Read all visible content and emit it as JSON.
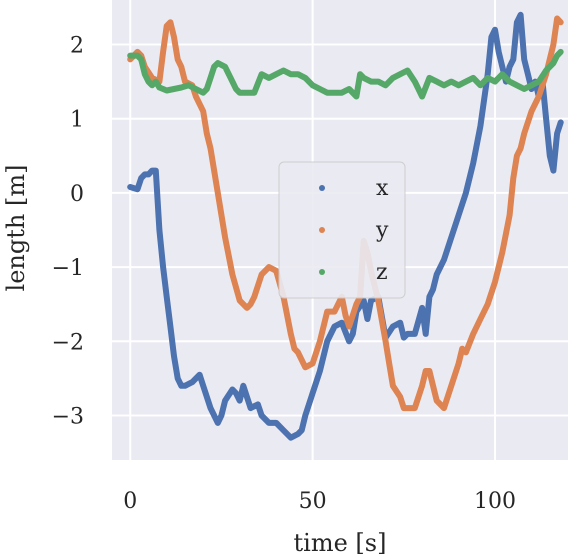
{
  "chart_data": {
    "type": "line",
    "xlabel": "time [s]",
    "ylabel": "length [m]",
    "xlim": [
      -5,
      120
    ],
    "ylim": [
      -3.6,
      2.6
    ],
    "x_ticks": [
      0,
      50,
      100
    ],
    "x_tick_labels": [
      "0",
      "50",
      "100"
    ],
    "y_ticks": [
      2,
      1,
      0,
      -1,
      -2,
      -3
    ],
    "y_tick_labels": [
      "2",
      "1",
      "0",
      "−1",
      "−2",
      "−3"
    ],
    "grid": true,
    "legend_position": "center",
    "series": [
      {
        "name": "x",
        "color": "#4c72b0",
        "x": [
          0,
          2,
          3,
          4,
          5,
          6,
          7,
          8,
          9,
          10,
          11,
          12,
          13,
          14,
          15,
          17,
          19,
          20,
          22,
          24,
          25,
          26,
          28,
          29,
          30,
          31,
          33,
          35,
          36,
          38,
          40,
          42,
          44,
          46,
          47,
          48,
          50,
          52,
          54,
          56,
          58,
          60,
          61,
          62,
          64,
          65,
          66,
          68,
          70,
          72,
          74,
          75,
          76,
          78,
          80,
          81,
          82,
          83,
          84,
          86,
          88,
          90,
          92,
          94,
          96,
          98,
          99,
          100,
          101,
          102,
          103,
          104,
          105,
          106,
          107,
          108,
          109,
          110,
          111,
          112,
          113,
          114,
          115,
          116,
          117,
          118
        ],
        "y": [
          0.08,
          0.05,
          0.2,
          0.25,
          0.25,
          0.3,
          0.3,
          -0.5,
          -1.0,
          -1.4,
          -1.8,
          -2.2,
          -2.5,
          -2.6,
          -2.6,
          -2.55,
          -2.45,
          -2.6,
          -2.9,
          -3.1,
          -3.0,
          -2.8,
          -2.65,
          -2.7,
          -2.8,
          -2.6,
          -2.9,
          -2.85,
          -3.0,
          -3.1,
          -3.1,
          -3.2,
          -3.3,
          -3.25,
          -3.2,
          -3.0,
          -2.7,
          -2.4,
          -2.0,
          -1.8,
          -1.75,
          -2.0,
          -1.9,
          -1.6,
          -1.45,
          -1.7,
          -1.45,
          -1.4,
          -1.95,
          -1.8,
          -1.75,
          -1.95,
          -1.9,
          -1.9,
          -1.55,
          -1.9,
          -1.4,
          -1.3,
          -1.1,
          -0.9,
          -0.6,
          -0.3,
          0.0,
          0.4,
          0.9,
          1.6,
          2.1,
          2.2,
          1.9,
          1.7,
          1.5,
          1.7,
          1.8,
          2.3,
          2.4,
          1.8,
          1.6,
          1.4,
          1.5,
          1.3,
          1.5,
          1.0,
          0.5,
          0.3,
          0.8,
          0.95
        ]
      },
      {
        "name": "y",
        "color": "#dd8452",
        "x": [
          0,
          2,
          3,
          4,
          6,
          8,
          9,
          10,
          11,
          12,
          13,
          14,
          15,
          17,
          18,
          20,
          21,
          22,
          24,
          26,
          28,
          30,
          31,
          32,
          33,
          34,
          36,
          38,
          40,
          42,
          44,
          45,
          46,
          48,
          50,
          52,
          54,
          56,
          58,
          59,
          60,
          62,
          63,
          64,
          65,
          66,
          68,
          70,
          71,
          72,
          74,
          75,
          76,
          78,
          80,
          81,
          82,
          84,
          86,
          88,
          90,
          91,
          92,
          94,
          96,
          98,
          100,
          102,
          104,
          105,
          106,
          107,
          108,
          110,
          112,
          114,
          116,
          117,
          118
        ],
        "y": [
          1.8,
          1.9,
          1.85,
          1.7,
          1.55,
          1.5,
          1.9,
          2.25,
          2.3,
          2.1,
          1.8,
          1.7,
          1.5,
          1.45,
          1.3,
          1.1,
          0.8,
          0.6,
          0.0,
          -0.6,
          -1.1,
          -1.45,
          -1.5,
          -1.55,
          -1.5,
          -1.4,
          -1.1,
          -1.0,
          -1.05,
          -1.4,
          -1.9,
          -2.1,
          -2.15,
          -2.35,
          -2.3,
          -2.0,
          -1.6,
          -1.6,
          -1.4,
          -1.65,
          -1.8,
          -1.5,
          -1.4,
          -0.65,
          -0.8,
          -1.05,
          -1.45,
          -2.0,
          -2.3,
          -2.6,
          -2.75,
          -2.9,
          -2.9,
          -2.9,
          -2.6,
          -2.4,
          -2.4,
          -2.8,
          -2.9,
          -2.6,
          -2.3,
          -2.1,
          -2.15,
          -1.9,
          -1.7,
          -1.5,
          -1.2,
          -0.8,
          -0.3,
          0.2,
          0.5,
          0.6,
          0.8,
          1.1,
          1.3,
          1.6,
          2.0,
          2.35,
          2.3
        ]
      },
      {
        "name": "z",
        "color": "#55a868",
        "x": [
          0,
          2,
          3,
          4,
          5,
          6,
          7,
          8,
          9,
          10,
          12,
          14,
          16,
          18,
          20,
          21,
          22,
          23,
          24,
          26,
          28,
          29,
          30,
          32,
          34,
          36,
          38,
          40,
          42,
          44,
          46,
          48,
          50,
          52,
          54,
          56,
          58,
          60,
          62,
          63,
          64,
          66,
          68,
          70,
          72,
          74,
          76,
          78,
          80,
          82,
          84,
          86,
          88,
          90,
          92,
          94,
          96,
          98,
          100,
          102,
          104,
          106,
          108,
          110,
          112,
          114,
          116,
          117,
          118
        ],
        "y": [
          1.85,
          1.85,
          1.8,
          1.6,
          1.5,
          1.45,
          1.5,
          1.42,
          1.4,
          1.38,
          1.4,
          1.42,
          1.45,
          1.4,
          1.35,
          1.4,
          1.55,
          1.7,
          1.75,
          1.7,
          1.5,
          1.4,
          1.35,
          1.35,
          1.35,
          1.6,
          1.55,
          1.6,
          1.65,
          1.6,
          1.6,
          1.55,
          1.45,
          1.4,
          1.35,
          1.35,
          1.35,
          1.4,
          1.3,
          1.6,
          1.55,
          1.5,
          1.5,
          1.45,
          1.55,
          1.6,
          1.65,
          1.5,
          1.3,
          1.55,
          1.5,
          1.45,
          1.5,
          1.45,
          1.5,
          1.55,
          1.45,
          1.55,
          1.5,
          1.6,
          1.5,
          1.45,
          1.4,
          1.45,
          1.5,
          1.65,
          1.75,
          1.85,
          1.9
        ]
      }
    ]
  }
}
